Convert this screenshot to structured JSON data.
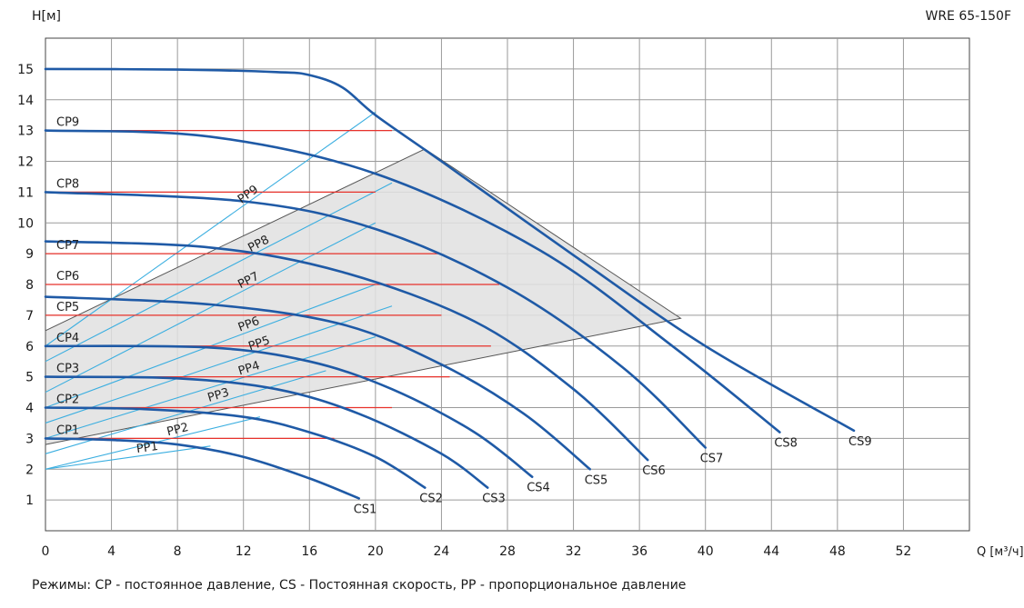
{
  "chart_data": {
    "type": "line",
    "title": "WRE 65-150F",
    "ylabel": "H[м]",
    "xlabel": "Q [м³/ч]",
    "xlim": [
      0,
      56
    ],
    "ylim": [
      0,
      16
    ],
    "grid": true,
    "xticks": [
      0,
      4,
      8,
      12,
      16,
      20,
      24,
      28,
      32,
      36,
      40,
      44,
      48,
      52
    ],
    "yticks": [
      1,
      2,
      3,
      4,
      5,
      6,
      7,
      8,
      9,
      10,
      11,
      12,
      13,
      14,
      15
    ],
    "colors": {
      "cs": "#1f5aa6",
      "cp": "#e8322b",
      "pp": "#3aaee0",
      "region": "#e0e0e0",
      "region_edge": "#555555",
      "grid": "#9a9a9a"
    },
    "region": [
      [
        0,
        6.5
      ],
      [
        23,
        12.4
      ],
      [
        38.5,
        6.9
      ],
      [
        0,
        2.8
      ]
    ],
    "cs_series": [
      {
        "name": "CS1",
        "points": [
          [
            0,
            3.0
          ],
          [
            4,
            2.95
          ],
          [
            8,
            2.8
          ],
          [
            12,
            2.4
          ],
          [
            16,
            1.7
          ],
          [
            19,
            1.05
          ]
        ]
      },
      {
        "name": "CS2",
        "points": [
          [
            0,
            4.0
          ],
          [
            6,
            3.95
          ],
          [
            12,
            3.7
          ],
          [
            16,
            3.2
          ],
          [
            20,
            2.4
          ],
          [
            23,
            1.4
          ]
        ]
      },
      {
        "name": "CS3",
        "points": [
          [
            0,
            5.0
          ],
          [
            8,
            4.95
          ],
          [
            14,
            4.6
          ],
          [
            19,
            3.8
          ],
          [
            24,
            2.5
          ],
          [
            26.8,
            1.4
          ]
        ]
      },
      {
        "name": "CS4",
        "points": [
          [
            0,
            6.0
          ],
          [
            10,
            5.95
          ],
          [
            16,
            5.5
          ],
          [
            21,
            4.6
          ],
          [
            26,
            3.2
          ],
          [
            29.5,
            1.75
          ]
        ]
      },
      {
        "name": "CS5",
        "points": [
          [
            0,
            7.6
          ],
          [
            10,
            7.35
          ],
          [
            18,
            6.7
          ],
          [
            24,
            5.4
          ],
          [
            29,
            3.8
          ],
          [
            33,
            2.0
          ]
        ]
      },
      {
        "name": "CS6",
        "points": [
          [
            0,
            9.4
          ],
          [
            10,
            9.2
          ],
          [
            18,
            8.4
          ],
          [
            26,
            6.8
          ],
          [
            32,
            4.6
          ],
          [
            36.5,
            2.3
          ]
        ]
      },
      {
        "name": "CS7",
        "points": [
          [
            0,
            11.0
          ],
          [
            12,
            10.7
          ],
          [
            20,
            9.8
          ],
          [
            28,
            7.9
          ],
          [
            35,
            5.3
          ],
          [
            40,
            2.7
          ]
        ]
      },
      {
        "name": "CS8",
        "points": [
          [
            0,
            13.0
          ],
          [
            10,
            12.8
          ],
          [
            20,
            11.6
          ],
          [
            30,
            9.1
          ],
          [
            38,
            6.0
          ],
          [
            44.5,
            3.2
          ]
        ]
      },
      {
        "name": "CS9",
        "points": [
          [
            0,
            15.0
          ],
          [
            8,
            14.98
          ],
          [
            14,
            14.9
          ],
          [
            16,
            14.8
          ],
          [
            18,
            14.4
          ],
          [
            20,
            13.5
          ],
          [
            24,
            12.0
          ],
          [
            32,
            8.95
          ],
          [
            40,
            6.0
          ],
          [
            49,
            3.25
          ]
        ]
      }
    ],
    "cp_series": [
      {
        "name": "CP1",
        "h": 3.0,
        "xmax": 17.5
      },
      {
        "name": "CP2",
        "h": 4.0,
        "xmax": 21.0
      },
      {
        "name": "CP3",
        "h": 5.0,
        "xmax": 24.5
      },
      {
        "name": "CP4",
        "h": 6.0,
        "xmax": 27.0
      },
      {
        "name": "CP5",
        "h": 7.0,
        "xmax": 24.0
      },
      {
        "name": "CP6",
        "h": 8.0,
        "xmax": 27.5
      },
      {
        "name": "CP7",
        "h": 9.0,
        "xmax": 24.0
      },
      {
        "name": "CP8",
        "h": 11.0,
        "xmax": 20.0
      },
      {
        "name": "CP9",
        "h": 13.0,
        "xmax": 21.0
      }
    ],
    "pp_series": [
      {
        "name": "PP1",
        "points": [
          [
            0,
            2.0
          ],
          [
            10,
            2.75
          ]
        ]
      },
      {
        "name": "PP2",
        "points": [
          [
            0,
            2.0
          ],
          [
            13,
            3.7
          ]
        ]
      },
      {
        "name": "PP3",
        "points": [
          [
            0,
            2.5
          ],
          [
            17,
            5.2
          ]
        ]
      },
      {
        "name": "PP4",
        "points": [
          [
            0,
            3.0
          ],
          [
            20,
            6.3
          ]
        ]
      },
      {
        "name": "PP5",
        "points": [
          [
            0,
            3.5
          ],
          [
            21,
            7.3
          ]
        ]
      },
      {
        "name": "PP6",
        "points": [
          [
            0,
            4.0
          ],
          [
            20,
            8.0
          ]
        ]
      },
      {
        "name": "PP7",
        "points": [
          [
            0,
            4.5
          ],
          [
            20,
            10.0
          ]
        ]
      },
      {
        "name": "PP8",
        "points": [
          [
            0,
            5.5
          ],
          [
            21,
            11.3
          ]
        ]
      },
      {
        "name": "PP9",
        "points": [
          [
            0,
            6.0
          ],
          [
            20,
            13.6
          ]
        ]
      }
    ]
  },
  "caption": "Режимы: CP - постоянное давление, CS - Постоянная скорость, PP - пропорциональное давление"
}
